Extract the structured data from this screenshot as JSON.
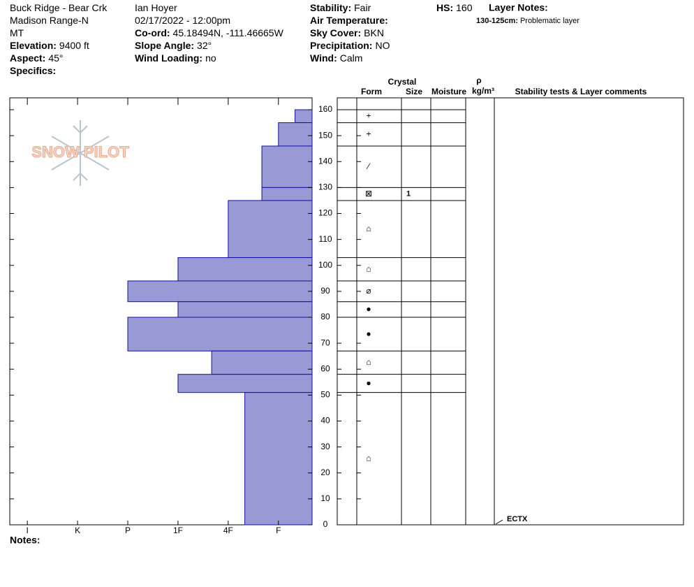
{
  "header": {
    "col1": [
      {
        "value": "Buck Ridge - Bear Crk"
      },
      {
        "value": "Madison Range-N"
      },
      {
        "value": "MT"
      },
      {
        "label": "Elevation:",
        "value": "9400 ft"
      },
      {
        "label": "Aspect:",
        "value": "45°"
      },
      {
        "label": "Specifics:"
      }
    ],
    "col2": [
      {
        "value": "Ian Hoyer"
      },
      {
        "value": "02/17/2022 - 12:00pm"
      },
      {
        "label": "Co-ord:",
        "value": "45.18494N, -111.46665W"
      },
      {
        "label": "Slope Angle:",
        "value": "32°"
      },
      {
        "label": "Wind Loading:",
        "value": "no"
      }
    ],
    "col3": [
      {
        "label": "Stability:",
        "value": "Fair"
      },
      {
        "label": "Air Temperature:"
      },
      {
        "label": "Sky Cover:",
        "value": "BKN"
      },
      {
        "label": "Precipitation:",
        "value": "NO"
      },
      {
        "label": "Wind:",
        "value": "Calm"
      }
    ],
    "hs": {
      "label": "HS:",
      "value": 160
    },
    "layer_notes": {
      "label": "Layer Notes:",
      "notes": [
        {
          "label": "130-125cm:",
          "value": "Problematic layer"
        }
      ]
    },
    "notes": "Notes:",
    "logo": "SNOW PILOT"
  },
  "chart_data": {
    "type": "snow_profile",
    "ylim": [
      0,
      160
    ],
    "yticks": [
      0,
      10,
      20,
      30,
      40,
      50,
      60,
      70,
      80,
      90,
      100,
      110,
      120,
      130,
      140,
      150,
      160
    ],
    "xlim": [
      0.33,
      6.35
    ],
    "x_reversed": true,
    "xticks": [
      {
        "value": 6,
        "label": "I"
      },
      {
        "value": 5,
        "label": "K"
      },
      {
        "value": 4,
        "label": "P"
      },
      {
        "value": 3,
        "label": "1F"
      },
      {
        "value": 2,
        "label": "4F"
      },
      {
        "value": 1,
        "label": "F"
      }
    ],
    "bar_color": "#9999d6",
    "layers": {
      "top": [
        160,
        155,
        146,
        130,
        125,
        103,
        94,
        86,
        80,
        67,
        58,
        51
      ],
      "bottom": [
        155,
        146,
        130,
        125,
        103,
        94,
        86,
        80,
        67,
        58,
        51,
        0
      ],
      "hardness": [
        0.67,
        1,
        1.33,
        1.33,
        2,
        3,
        4,
        3,
        4,
        2.33,
        3,
        1.67
      ],
      "form": [
        "+",
        "+",
        "⁄",
        "⊠",
        "⌂",
        "⌂",
        "⌀",
        "●",
        "●",
        "⌂",
        "●",
        "⌂"
      ],
      "size": [
        null,
        null,
        null,
        "1",
        null,
        null,
        null,
        null,
        null,
        null,
        null,
        null
      ]
    },
    "crystal_header": "Crystal",
    "columns": [
      "Form",
      "Size",
      "Moisture"
    ],
    "density_header": [
      "ρ",
      "kg/m³"
    ],
    "comments_header": "Stability tests & Layer comments",
    "stability_tests": [
      {
        "depth": 0,
        "label": "ECTX"
      }
    ]
  }
}
